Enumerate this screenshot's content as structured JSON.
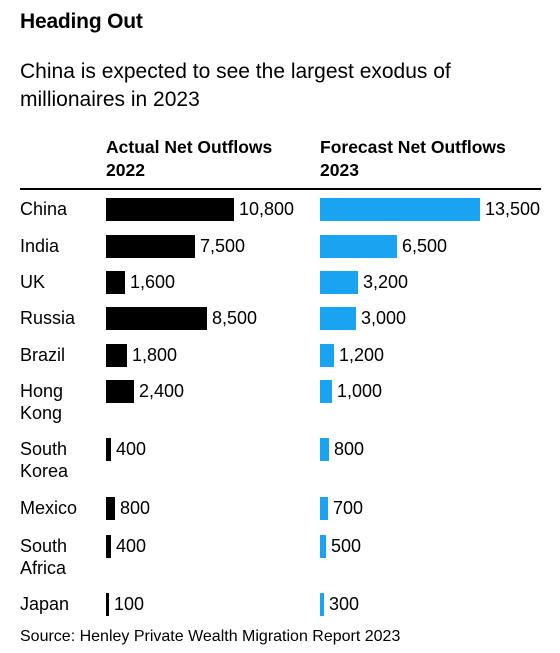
{
  "title": "Heading Out",
  "subtitle": "China is expected to see the largest exodus of millionaires in 2023",
  "columns": {
    "actual": "Actual Net Outflows\n2022",
    "forecast": "Forecast Net Outflows\n2023"
  },
  "source": "Source: Henley Private Wealth Migration Report 2023",
  "colors": {
    "actual": "#000000",
    "forecast": "#1aa3f0"
  },
  "chart_data": {
    "type": "bar",
    "orientation": "horizontal",
    "categories": [
      "China",
      "India",
      "UK",
      "Russia",
      "Brazil",
      "Hong\nKong",
      "South\nKorea",
      "Mexico",
      "South\nAfrica",
      "Japan"
    ],
    "series": [
      {
        "name": "Actual Net Outflows 2022",
        "values": [
          10800,
          7500,
          1600,
          8500,
          1800,
          2400,
          400,
          800,
          400,
          100
        ],
        "labels": [
          "10,800",
          "7,500",
          "1,600",
          "8,500",
          "1,800",
          "2,400",
          "400",
          "800",
          "400",
          "100"
        ]
      },
      {
        "name": "Forecast Net Outflows 2023",
        "values": [
          13500,
          6500,
          3200,
          3000,
          1200,
          1000,
          800,
          700,
          500,
          300
        ],
        "labels": [
          "13,500",
          "6,500",
          "3,200",
          "3,000",
          "1,200",
          "1,000",
          "800",
          "700",
          "500",
          "300"
        ]
      }
    ]
  }
}
